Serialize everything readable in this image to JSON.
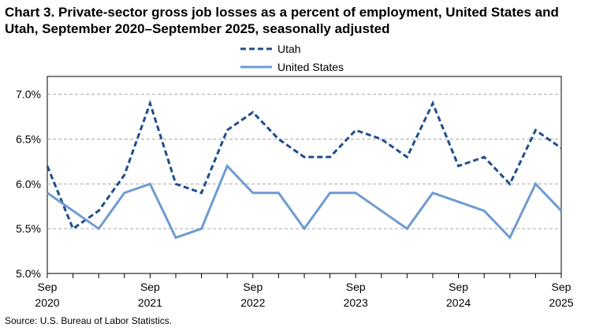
{
  "title": "Chart 3. Private-sector gross job losses as a percent of employment, United States and Utah, September 2020–September 2025, seasonally adjusted",
  "source": "Source: U.S. Bureau of Labor Statistics.",
  "chart_data": {
    "type": "line",
    "title": "Chart 3. Private-sector gross job losses as a percent of employment, United States and Utah, September 2020–September 2025, seasonally adjusted",
    "xlabel": "",
    "ylabel": "",
    "x": [
      "Sep 2020",
      "Dec 2020",
      "Mar 2021",
      "Jun 2021",
      "Sep 2021",
      "Dec 2021",
      "Mar 2022",
      "Jun 2022",
      "Sep 2022",
      "Dec 2022",
      "Mar 2023",
      "Jun 2023",
      "Sep 2023",
      "Dec 2023",
      "Mar 2024",
      "Jun 2024",
      "Sep 2024",
      "Dec 2024",
      "Mar 2025",
      "Jun 2025",
      "Sep 2025"
    ],
    "x_tick_labels": [
      {
        "index": 0,
        "month": "Sep",
        "year": "2020"
      },
      {
        "index": 4,
        "month": "Sep",
        "year": "2021"
      },
      {
        "index": 8,
        "month": "Sep",
        "year": "2022"
      },
      {
        "index": 12,
        "month": "Sep",
        "year": "2023"
      },
      {
        "index": 16,
        "month": "Sep",
        "year": "2024"
      },
      {
        "index": 20,
        "month": "Sep",
        "year": "2025"
      }
    ],
    "yticks": [
      "5.0%",
      "5.5%",
      "6.0%",
      "6.5%",
      "7.0%"
    ],
    "ylim": [
      5.0,
      7.2
    ],
    "grid": "horizontal dashed",
    "legend_position": "top",
    "series": [
      {
        "name": "Utah",
        "color": "#1f4e8c",
        "style": "dashed",
        "values": [
          6.2,
          5.5,
          5.7,
          6.1,
          6.9,
          6.0,
          5.9,
          6.6,
          6.8,
          6.5,
          6.3,
          6.3,
          6.6,
          6.5,
          6.3,
          6.9,
          6.2,
          6.3,
          6.0,
          6.6,
          6.4
        ]
      },
      {
        "name": "United States",
        "color": "#6f9bd1",
        "style": "solid",
        "values": [
          5.9,
          5.7,
          5.5,
          5.9,
          6.0,
          5.4,
          5.5,
          6.2,
          5.9,
          5.9,
          5.5,
          5.9,
          5.9,
          5.7,
          5.5,
          5.9,
          5.8,
          5.7,
          5.4,
          6.0,
          5.7
        ]
      }
    ]
  }
}
